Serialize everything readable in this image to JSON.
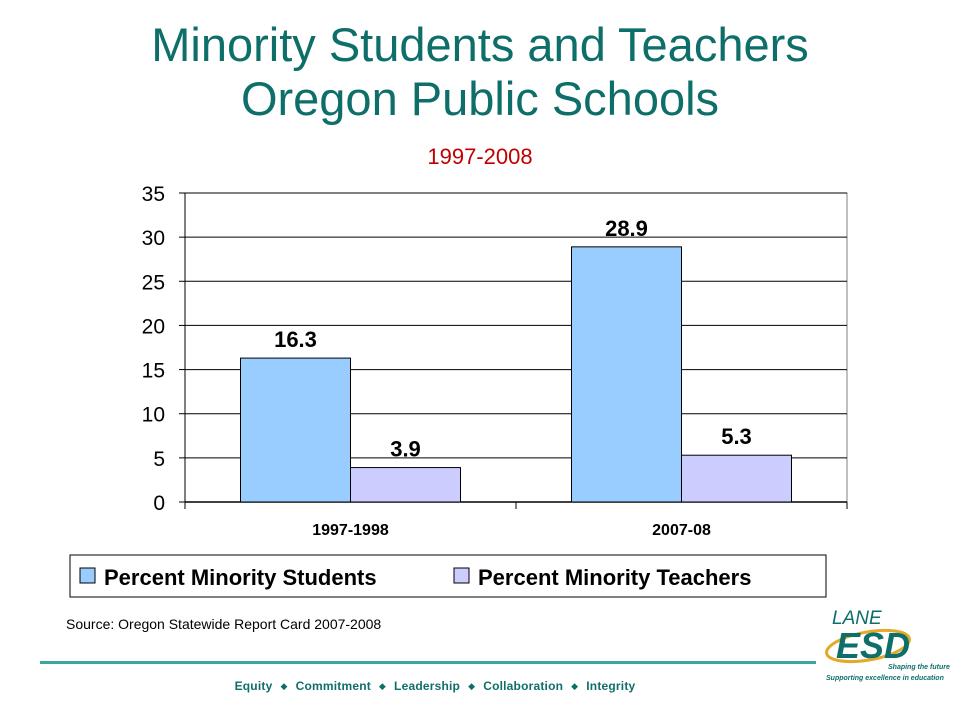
{
  "slide": {
    "title_line1": "Minority Students and Teachers",
    "title_line2": "Oregon Public Schools",
    "subtitle": "1997-2008",
    "source": "Source: Oregon Statewide Report Card 2007-2008",
    "footer": [
      "Equity",
      "Commitment",
      "Leadership",
      "Collaboration",
      "Integrity"
    ],
    "footer_separator": "◆",
    "logo": {
      "word1": "LANE",
      "word2": "ESD",
      "tagline1": "Shaping the future:",
      "tagline2": "Supporting excellence in education"
    }
  },
  "colors": {
    "title": "#0e6f6a",
    "subtitle": "#c00000",
    "students_bar": "#99ccff",
    "teachers_bar": "#ccccff",
    "rule": "#3aa6a2"
  },
  "chart_data": {
    "type": "bar",
    "categories": [
      "1997-1998",
      "2007-08"
    ],
    "series": [
      {
        "name": "Percent Minority Students",
        "values": [
          16.3,
          28.9
        ],
        "color": "#99ccff"
      },
      {
        "name": "Percent Minority Teachers",
        "values": [
          3.9,
          5.3
        ],
        "color": "#ccccff"
      }
    ],
    "ylim": [
      0,
      35
    ],
    "yticks": [
      0,
      5,
      10,
      15,
      20,
      25,
      30,
      35
    ],
    "grid": true,
    "legend_position": "bottom",
    "data_labels": true
  }
}
